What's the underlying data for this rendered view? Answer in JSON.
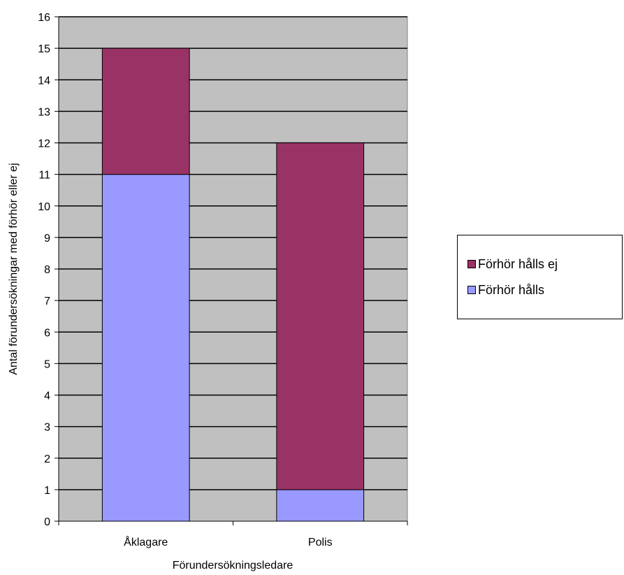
{
  "chart_data": {
    "type": "bar",
    "stacked": true,
    "categories": [
      "Åklagare",
      "Polis"
    ],
    "series": [
      {
        "name": "Förhör hålls",
        "values": [
          11,
          1
        ],
        "color": "#9999FF"
      },
      {
        "name": "Förhör hålls ej",
        "values": [
          4,
          11
        ],
        "color": "#993366"
      }
    ],
    "xlabel": "Förundersökningsledare",
    "ylabel": "Antal förundersökningar med förhör eller ej",
    "ylim": [
      0,
      16
    ],
    "yticks": [
      0,
      1,
      2,
      3,
      4,
      5,
      6,
      7,
      8,
      9,
      10,
      11,
      12,
      13,
      14,
      15,
      16
    ],
    "grid": true,
    "plot_background": "#C0C0C0",
    "legend_position": "right"
  },
  "legend": {
    "items": [
      {
        "label": "Förhör hålls ej",
        "color": "#993366"
      },
      {
        "label": "Förhör hålls",
        "color": "#9999FF"
      }
    ]
  }
}
